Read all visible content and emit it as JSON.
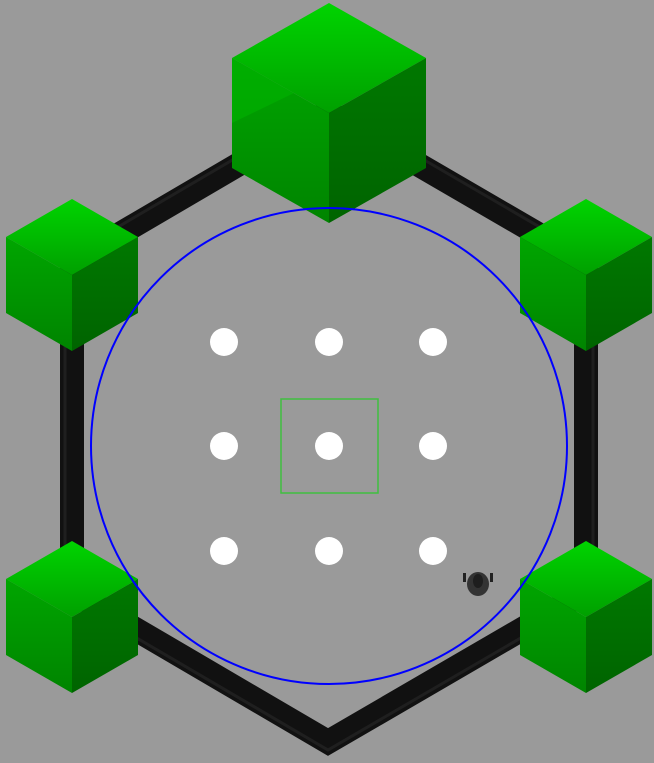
{
  "scene": {
    "background_color": "#9a9a9a",
    "arena_wall_color": "#111111",
    "boundary_circle_color": "#0000ff",
    "target_square_color": "#3fbf3f",
    "marker_color": "#ffffff",
    "cube_colors": {
      "top_light": "#00cc00",
      "top_mid": "#00a800",
      "side_left": "#009400",
      "side_right": "#006e00"
    },
    "robot": {
      "icon": "robot-icon",
      "body_color": "#333333"
    },
    "cubes": [
      {
        "id": "cube-top",
        "icon": "green-cube-icon"
      },
      {
        "id": "cube-upper-left",
        "icon": "green-cube-icon"
      },
      {
        "id": "cube-upper-right",
        "icon": "green-cube-icon"
      },
      {
        "id": "cube-lower-left",
        "icon": "green-cube-icon"
      },
      {
        "id": "cube-lower-right",
        "icon": "green-cube-icon"
      }
    ],
    "marker_grid": {
      "rows": 3,
      "cols": 3
    }
  }
}
